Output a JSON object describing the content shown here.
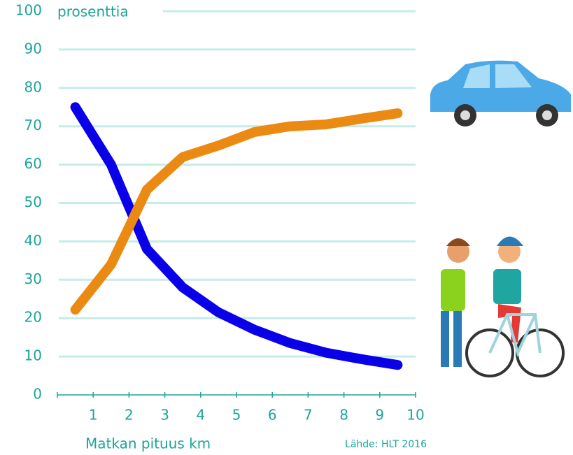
{
  "chart_data": {
    "type": "line",
    "y_label": "prosenttia",
    "x_label": "Matkan pituus km",
    "source": "Lähde: HLT 2016",
    "x": [
      0.5,
      1.5,
      2.5,
      3.5,
      4.5,
      5.5,
      6.5,
      7.5,
      8.5,
      9.5
    ],
    "series": [
      {
        "color": "#0a00e8",
        "values": [
          75,
          60,
          38,
          28,
          21.5,
          17,
          13.5,
          11,
          9.3,
          7.8
        ]
      },
      {
        "color": "#eb8a12",
        "values": [
          22.2,
          34,
          53.5,
          62,
          65,
          68.5,
          70,
          70.5,
          72,
          73.4
        ]
      }
    ],
    "xlim": [
      0,
      10
    ],
    "xticks": [
      1,
      2,
      3,
      4,
      5,
      6,
      7,
      8,
      9,
      10
    ],
    "ylim": [
      0,
      100
    ],
    "yticks": [
      0,
      10,
      20,
      30,
      40,
      50,
      60,
      70,
      80,
      90,
      100
    ],
    "grid": true
  }
}
